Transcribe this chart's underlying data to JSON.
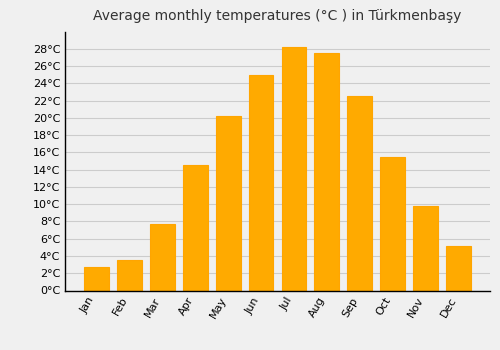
{
  "title": "Average monthly temperatures (°C ) in Türkmenbaşy",
  "months": [
    "Jan",
    "Feb",
    "Mar",
    "Apr",
    "May",
    "Jun",
    "Jul",
    "Aug",
    "Sep",
    "Oct",
    "Nov",
    "Dec"
  ],
  "values": [
    2.7,
    3.5,
    7.7,
    14.5,
    20.2,
    25.0,
    28.2,
    27.5,
    22.5,
    15.5,
    9.8,
    5.2
  ],
  "bar_color": "#FFAA00",
  "bar_edge_color": "#FFA500",
  "ylim": [
    0,
    30
  ],
  "yticks": [
    0,
    2,
    4,
    6,
    8,
    10,
    12,
    14,
    16,
    18,
    20,
    22,
    24,
    26,
    28
  ],
  "background_color": "#F0F0F0",
  "grid_color": "#CCCCCC",
  "title_fontsize": 10,
  "tick_fontsize": 8
}
